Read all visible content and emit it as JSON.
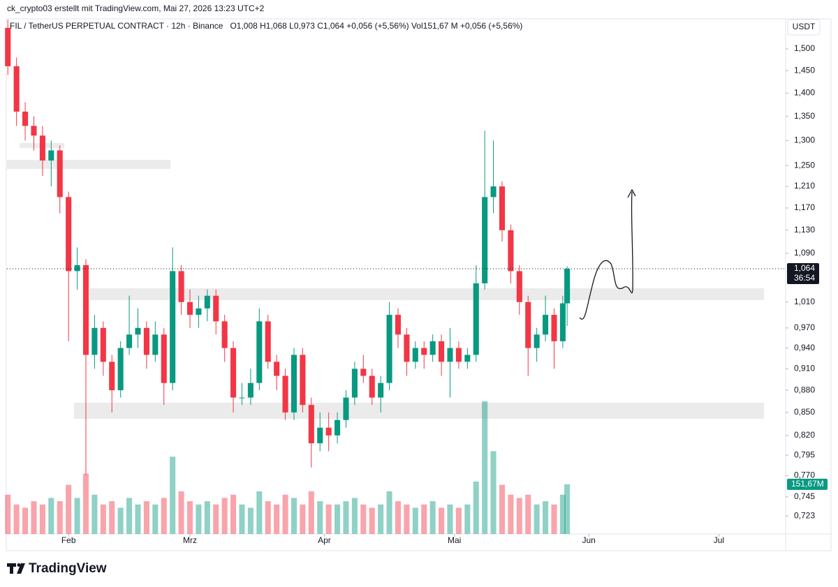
{
  "chart_data": {
    "type": "candlestick",
    "credit": "ck_crypto03 erstellt mit TradingView.com, Mai 27, 2026 13:23 UTC+2",
    "symbol": "FIL / TetherUS PERPETUAL CONTRACT · 12h · Binance",
    "ohlc_text": "O1,008 H1,068 L0,973 C1,064 +0,056 (+5,56%) Vol151,67 M +0,056 (+5,56%)",
    "currency": "USDT",
    "last_price_label": "1,064",
    "countdown": "36:54",
    "last_volume_label": "151,67M",
    "brand": "TradingView",
    "log_scale": true,
    "up_color": "#089981",
    "down_color": "#f23645",
    "x": [
      18,
      20,
      22,
      24,
      26,
      28,
      30,
      32,
      34,
      36,
      38,
      40,
      42,
      44,
      46,
      48,
      50,
      52,
      54,
      56,
      58,
      60,
      62,
      64,
      66,
      68,
      70,
      72,
      74,
      76,
      78,
      80,
      82,
      84,
      86,
      88,
      90,
      92,
      94,
      96,
      98,
      100,
      102,
      104,
      106,
      108,
      110,
      112,
      114,
      116,
      118,
      120,
      122,
      124,
      126,
      128,
      130,
      132,
      134,
      136,
      138,
      140,
      142,
      144,
      146,
      147
    ],
    "open": [
      1.55,
      1.46,
      1.36,
      1.33,
      1.31,
      1.26,
      1.28,
      1.19,
      1.06,
      1.07,
      0.93,
      0.97,
      0.92,
      0.88,
      0.94,
      0.96,
      0.97,
      0.93,
      0.96,
      0.89,
      1.06,
      1.01,
      0.99,
      1.0,
      1.02,
      0.98,
      0.94,
      0.87,
      0.87,
      0.89,
      0.98,
      0.92,
      0.9,
      0.85,
      0.93,
      0.86,
      0.81,
      0.83,
      0.82,
      0.84,
      0.87,
      0.91,
      0.9,
      0.87,
      0.89,
      0.99,
      0.96,
      0.92,
      0.94,
      0.93,
      0.95,
      0.92,
      0.94,
      0.92,
      0.93,
      1.04,
      1.19,
      1.21,
      1.13,
      1.06,
      1.01,
      0.94,
      0.96,
      0.99,
      0.95,
      1.008
    ],
    "high": [
      1.57,
      1.48,
      1.38,
      1.35,
      1.33,
      1.3,
      1.29,
      1.2,
      1.1,
      1.08,
      0.99,
      0.98,
      0.93,
      0.95,
      1.02,
      1.0,
      0.98,
      0.98,
      0.97,
      1.1,
      1.07,
      1.03,
      1.02,
      1.03,
      1.03,
      0.99,
      0.95,
      0.89,
      0.91,
      1.0,
      0.99,
      0.93,
      0.91,
      0.94,
      0.94,
      0.87,
      0.85,
      0.85,
      0.85,
      0.88,
      0.92,
      0.93,
      0.91,
      0.9,
      1.01,
      1.0,
      0.97,
      0.95,
      0.95,
      0.96,
      0.96,
      0.97,
      0.95,
      0.94,
      1.07,
      1.32,
      1.3,
      1.22,
      1.14,
      1.07,
      1.02,
      0.97,
      1.02,
      1.0,
      1.02,
      1.068
    ],
    "low": [
      1.44,
      1.33,
      1.3,
      1.28,
      1.23,
      1.21,
      1.16,
      0.95,
      1.03,
      0.771,
      0.91,
      0.9,
      0.85,
      0.87,
      0.93,
      0.94,
      0.91,
      0.92,
      0.86,
      0.88,
      0.99,
      0.97,
      0.97,
      0.98,
      0.96,
      0.92,
      0.85,
      0.86,
      0.86,
      0.88,
      0.91,
      0.88,
      0.84,
      0.84,
      0.85,
      0.78,
      0.8,
      0.8,
      0.81,
      0.83,
      0.86,
      0.89,
      0.86,
      0.85,
      0.88,
      0.94,
      0.9,
      0.91,
      0.91,
      0.92,
      0.9,
      0.87,
      0.91,
      0.91,
      0.92,
      1.03,
      1.16,
      1.11,
      1.04,
      0.99,
      0.9,
      0.92,
      0.95,
      0.91,
      0.94,
      0.973
    ],
    "close": [
      1.46,
      1.36,
      1.33,
      1.31,
      1.26,
      1.28,
      1.19,
      1.06,
      1.07,
      0.93,
      0.97,
      0.92,
      0.88,
      0.94,
      0.96,
      0.97,
      0.93,
      0.96,
      0.89,
      1.06,
      1.01,
      0.99,
      1.0,
      1.02,
      0.98,
      0.94,
      0.87,
      0.87,
      0.89,
      0.98,
      0.92,
      0.9,
      0.85,
      0.93,
      0.86,
      0.81,
      0.83,
      0.82,
      0.84,
      0.87,
      0.91,
      0.9,
      0.87,
      0.89,
      0.99,
      0.96,
      0.92,
      0.94,
      0.93,
      0.95,
      0.92,
      0.94,
      0.92,
      0.93,
      1.04,
      1.19,
      1.21,
      1.13,
      1.06,
      1.01,
      0.94,
      0.96,
      0.99,
      0.95,
      1.008,
      1.064
    ],
    "volume": [
      120,
      90,
      80,
      100,
      90,
      110,
      100,
      150,
      110,
      184,
      120,
      90,
      100,
      80,
      110,
      90,
      100,
      90,
      110,
      236,
      130,
      100,
      90,
      100,
      90,
      110,
      120,
      90,
      80,
      130,
      100,
      90,
      120,
      110,
      90,
      130,
      100,
      90,
      90,
      100,
      110,
      90,
      80,
      90,
      130,
      100,
      90,
      80,
      90,
      100,
      80,
      90,
      80,
      90,
      160,
      405,
      253,
      150,
      120,
      110,
      120,
      90,
      100,
      90,
      120,
      151.67
    ],
    "xlim": [
      17.8,
      197.4
    ],
    "xticks": [
      {
        "value": 32,
        "label": "Feb"
      },
      {
        "value": 60,
        "label": "Mrz"
      },
      {
        "value": 91,
        "label": "Apr"
      },
      {
        "value": 121,
        "label": "Mai"
      },
      {
        "value": 152,
        "label": "Jun"
      },
      {
        "value": 182,
        "label": "Jul"
      }
    ],
    "ylim": [
      0.703,
      1.567
    ],
    "yticks": [
      {
        "value": 1.5,
        "label": "1,500"
      },
      {
        "value": 1.45,
        "label": "1,450"
      },
      {
        "value": 1.4,
        "label": "1,400"
      },
      {
        "value": 1.35,
        "label": "1,350"
      },
      {
        "value": 1.3,
        "label": "1,300"
      },
      {
        "value": 1.25,
        "label": "1,250"
      },
      {
        "value": 1.21,
        "label": "1,210"
      },
      {
        "value": 1.17,
        "label": "1,170"
      },
      {
        "value": 1.13,
        "label": "1,130"
      },
      {
        "value": 1.09,
        "label": "1,090"
      },
      {
        "value": 1.01,
        "label": "1,010"
      },
      {
        "value": 0.97,
        "label": "0,970"
      },
      {
        "value": 0.94,
        "label": "0,940"
      },
      {
        "value": 0.91,
        "label": "0,910"
      },
      {
        "value": 0.88,
        "label": "0,880"
      },
      {
        "value": 0.85,
        "label": "0,850"
      },
      {
        "value": 0.82,
        "label": "0,820"
      },
      {
        "value": 0.795,
        "label": "0,795"
      },
      {
        "value": 0.77,
        "label": "0,770"
      },
      {
        "value": 0.745,
        "label": "0,745"
      },
      {
        "value": 0.723,
        "label": "0,723"
      }
    ]
  }
}
